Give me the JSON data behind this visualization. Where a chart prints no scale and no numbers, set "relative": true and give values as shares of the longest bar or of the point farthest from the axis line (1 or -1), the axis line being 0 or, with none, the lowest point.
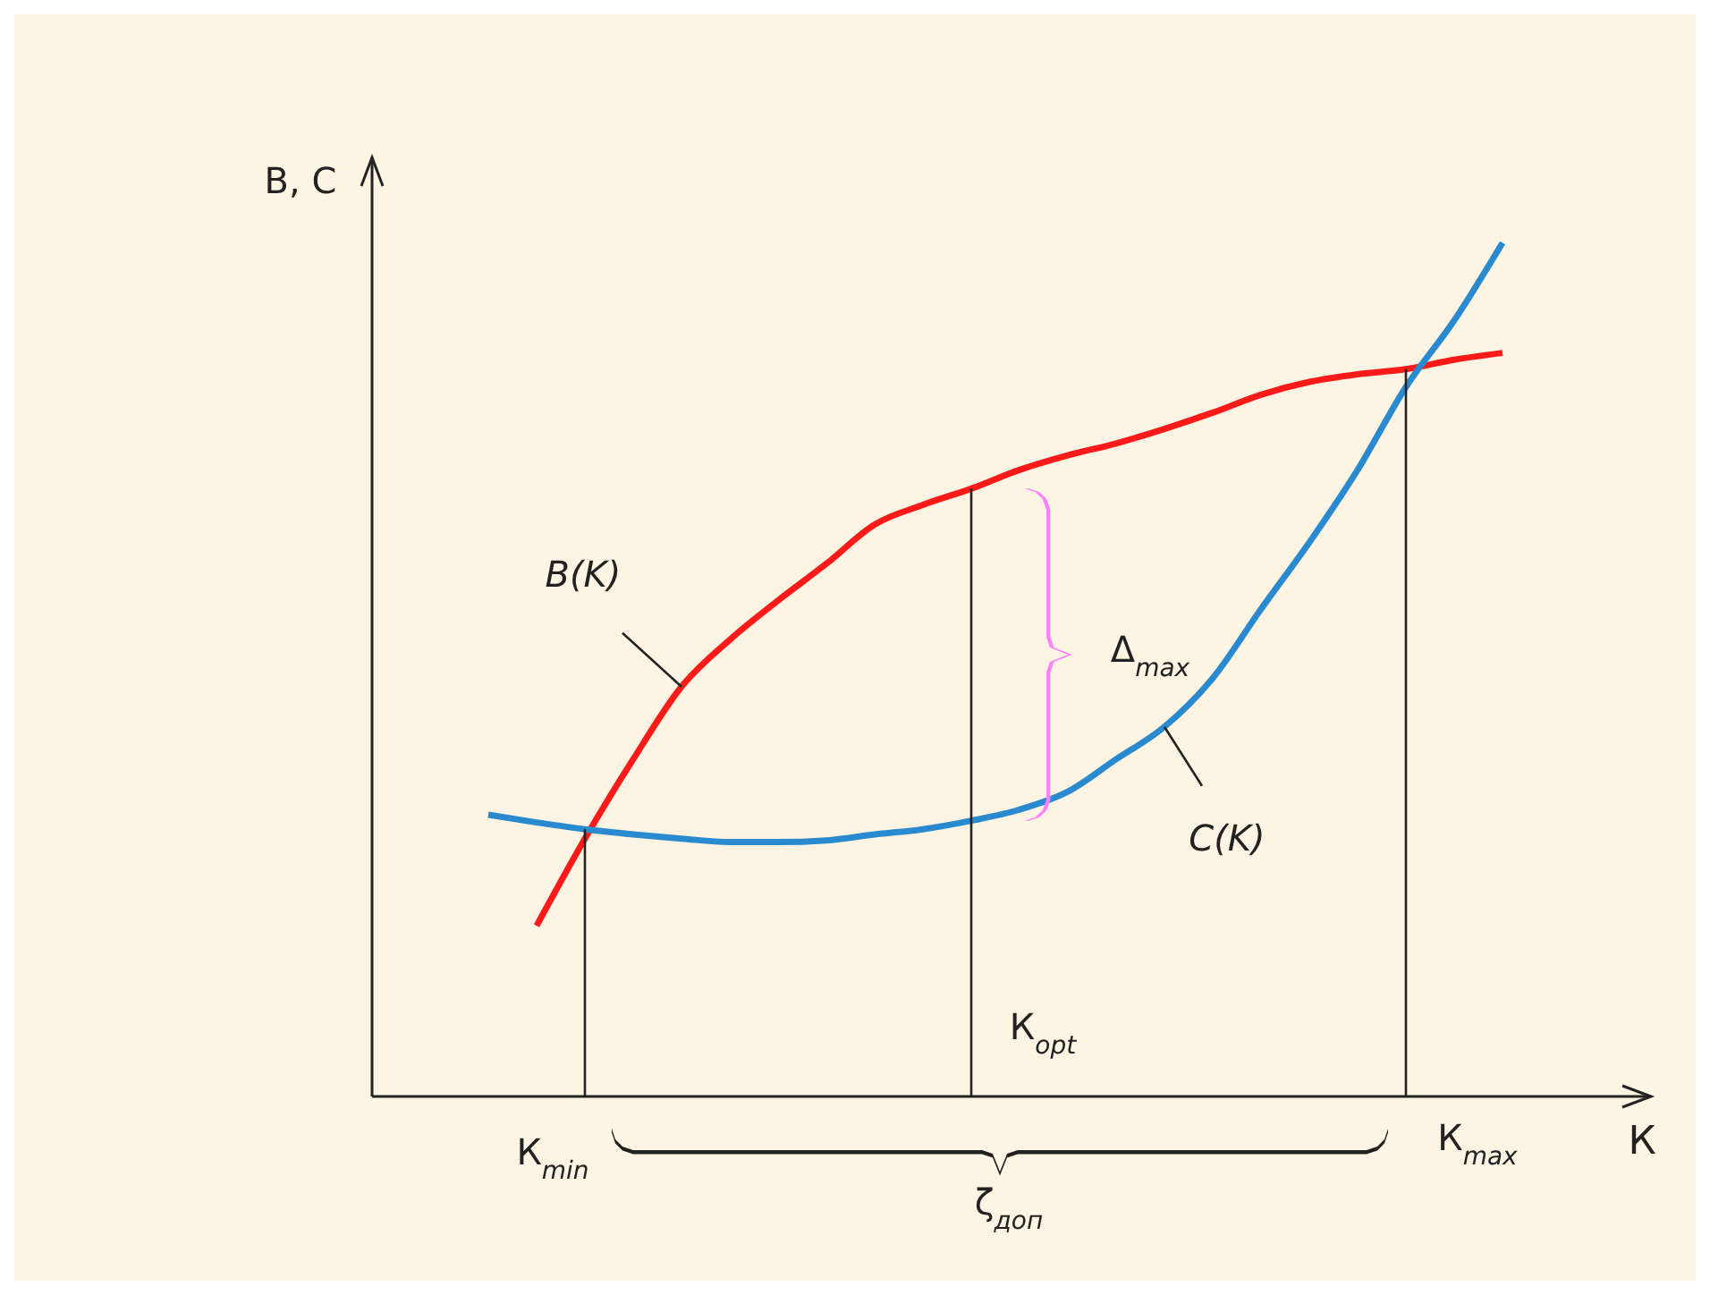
{
  "chart_data": {
    "type": "line",
    "relative": true,
    "xlabel": "К",
    "ylabel": "B, C",
    "categories": [
      null,
      null,
      null,
      null,
      null,
      null,
      null,
      null,
      null,
      null,
      null,
      null,
      null,
      null,
      null,
      null,
      null,
      null,
      null,
      null,
      null,
      null
    ],
    "series": [
      {
        "name": "B(K)",
        "color": "#ff1a1a",
        "values": [
          null,
          0.2,
          0.302,
          0.395,
          0.48,
          0.535,
          0.581,
          0.624,
          0.67,
          0.693,
          0.712,
          0.734,
          0.751,
          0.765,
          0.782,
          0.801,
          0.822,
          0.837,
          0.846,
          0.852,
          0.863,
          0.871
        ]
      },
      {
        "name": "C(K)",
        "color": "#2a8ad0",
        "values": [
          0.33,
          0.321,
          0.313,
          0.307,
          0.302,
          0.298,
          0.298,
          0.3,
          0.307,
          0.313,
          0.323,
          0.336,
          0.357,
          0.395,
          0.433,
          0.49,
          0.571,
          0.649,
          0.734,
          0.831,
          0.909,
          1
        ]
      }
    ],
    "annotations": [
      "К$_{min}$",
      "К$_{opt}$",
      "К$_{max}$",
      "Δ$_{max}$",
      "ζ$_{доп}$"
    ],
    "legend": false,
    "grid": false,
    "marker": "none",
    "line_style": "solid"
  }
}
